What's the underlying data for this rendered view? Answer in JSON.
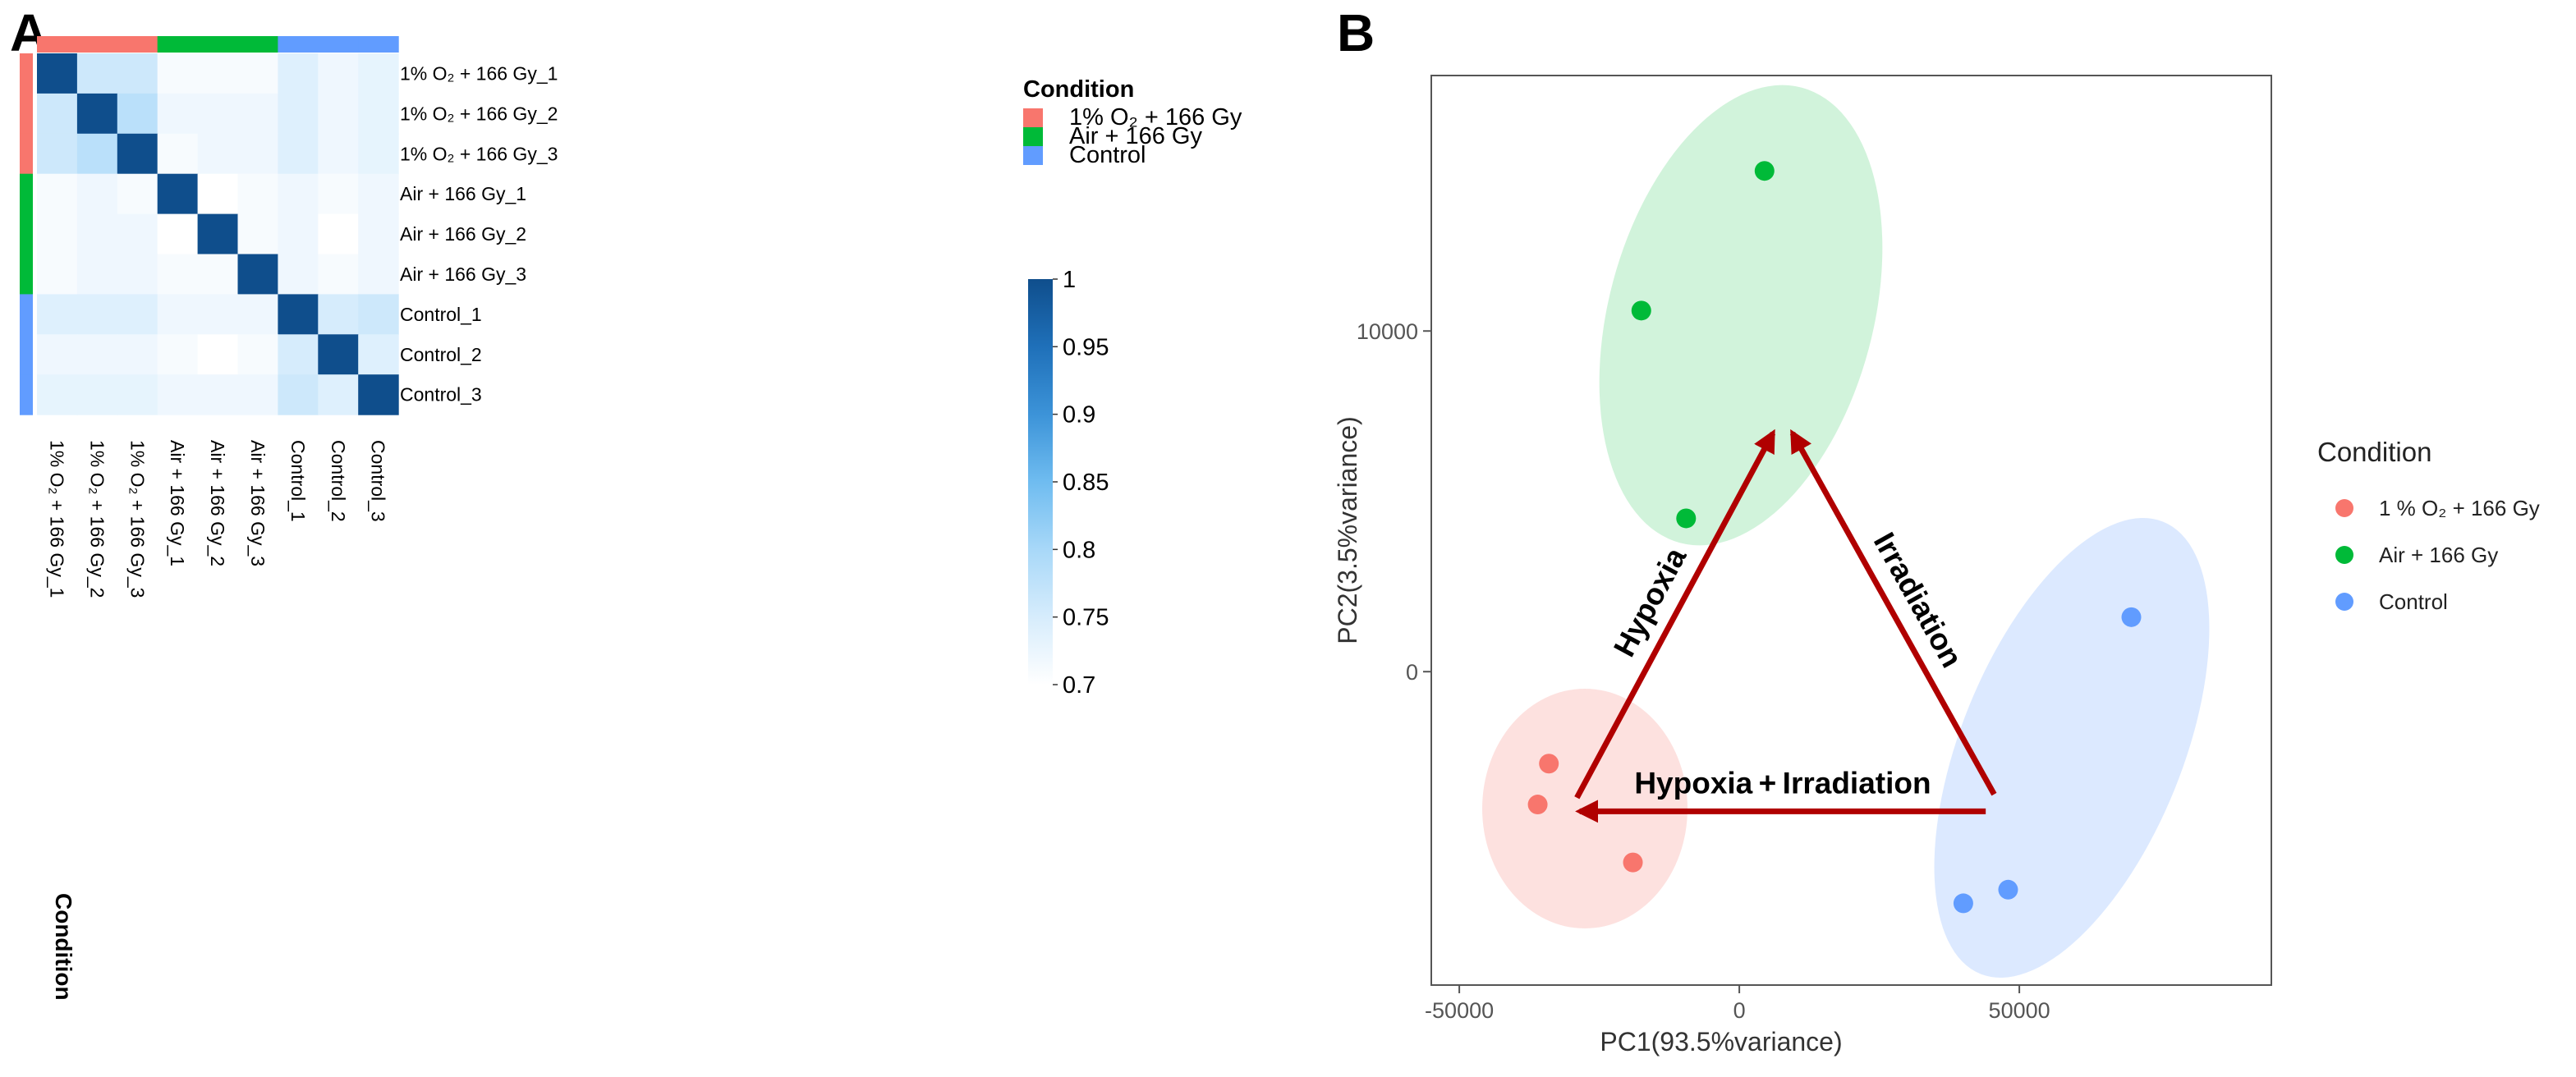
{
  "chart_data": [
    {
      "type": "heatmap",
      "panel": "A",
      "rows": [
        "1% O₂ + 166 Gy_1",
        "1% O₂ + 166 Gy_2",
        "1% O₂ + 166 Gy_3",
        "Air + 166 Gy_1",
        "Air + 166 Gy_2",
        "Air + 166 Gy_3",
        "Control_1",
        "Control_2",
        "Control_3"
      ],
      "columns": [
        "1% O₂ + 166 Gy_1",
        "1% O₂ + 166 Gy_2",
        "1% O₂ + 166 Gy_3",
        "Air + 166 Gy_1",
        "Air + 166 Gy_2",
        "Air + 166 Gy_3",
        "Control_1",
        "Control_2",
        "Control_3"
      ],
      "row_conditions": [
        "1% O₂ + 166 Gy",
        "1% O₂ + 166 Gy",
        "1% O₂ + 166 Gy",
        "Air + 166 Gy",
        "Air + 166 Gy",
        "Air + 166 Gy",
        "Control",
        "Control",
        "Control"
      ],
      "values": [
        [
          1.0,
          0.76,
          0.76,
          0.71,
          0.71,
          0.71,
          0.74,
          0.72,
          0.73
        ],
        [
          0.76,
          1.0,
          0.78,
          0.72,
          0.72,
          0.72,
          0.74,
          0.72,
          0.73
        ],
        [
          0.76,
          0.78,
          1.0,
          0.71,
          0.72,
          0.72,
          0.74,
          0.72,
          0.73
        ],
        [
          0.71,
          0.72,
          0.71,
          1.0,
          0.7,
          0.71,
          0.72,
          0.71,
          0.72
        ],
        [
          0.71,
          0.72,
          0.72,
          0.7,
          1.0,
          0.71,
          0.72,
          0.7,
          0.72
        ],
        [
          0.71,
          0.72,
          0.72,
          0.71,
          0.71,
          1.0,
          0.72,
          0.71,
          0.72
        ],
        [
          0.74,
          0.74,
          0.74,
          0.72,
          0.72,
          0.72,
          1.0,
          0.75,
          0.76
        ],
        [
          0.72,
          0.72,
          0.72,
          0.71,
          0.7,
          0.71,
          0.75,
          1.0,
          0.74
        ],
        [
          0.73,
          0.73,
          0.73,
          0.72,
          0.72,
          0.72,
          0.76,
          0.74,
          1.0
        ]
      ],
      "colorbar": {
        "min": 0.7,
        "max": 1,
        "ticks": [
          "1",
          "0.95",
          "0.9",
          "0.85",
          "0.8",
          "0.75",
          "0.7"
        ]
      },
      "legend": {
        "title": "Condition",
        "entries": [
          {
            "label": "1% O₂ + 166 Gy",
            "color": "#f8766d"
          },
          {
            "label": "Air + 166 Gy",
            "color": "#00ba38"
          },
          {
            "label": "Control",
            "color": "#619cff"
          }
        ]
      },
      "annotation_label": "Condition"
    },
    {
      "type": "scatter",
      "panel": "B",
      "xlabel": "PC1(93.5%variance)",
      "ylabel": "PC2(3.5%variance)",
      "xlim": [
        -55000,
        95000
      ],
      "ylim": [
        -9200,
        17500
      ],
      "xticks": [
        -50000,
        0,
        50000
      ],
      "yticks": [
        0,
        10000
      ],
      "series": [
        {
          "name": "1 % O₂ + 166 Gy",
          "color": "#f8766d",
          "points": [
            [
              -34000,
              -2700
            ],
            [
              -36000,
              -3900
            ],
            [
              -19000,
              -5600
            ]
          ]
        },
        {
          "name": "Air + 166 Gy",
          "color": "#00ba38",
          "points": [
            [
              4500,
              14700
            ],
            [
              -17500,
              10600
            ],
            [
              -9500,
              4500
            ]
          ]
        },
        {
          "name": "Control",
          "color": "#619cff",
          "points": [
            [
              70000,
              1600
            ],
            [
              48000,
              -6400
            ],
            [
              40000,
              -6800
            ]
          ]
        }
      ],
      "legend": {
        "title": "Condition",
        "entries": [
          "1 % O₂ + 166 Gy",
          "Air + 166 Gy",
          "Control"
        ]
      },
      "annotations": [
        {
          "text": "Hypoxia",
          "from": [
            -29000,
            -3700
          ],
          "to": [
            6000,
            7000
          ]
        },
        {
          "text": "Irradiation",
          "from": [
            45500,
            -3600
          ],
          "to": [
            9500,
            7000
          ]
        },
        {
          "text": "Hypoxia + Irradiation",
          "from": [
            44000,
            -4100
          ],
          "to": [
            -28500,
            -4100
          ]
        }
      ]
    }
  ],
  "panels": {
    "a_label": "A",
    "b_label": "B"
  }
}
